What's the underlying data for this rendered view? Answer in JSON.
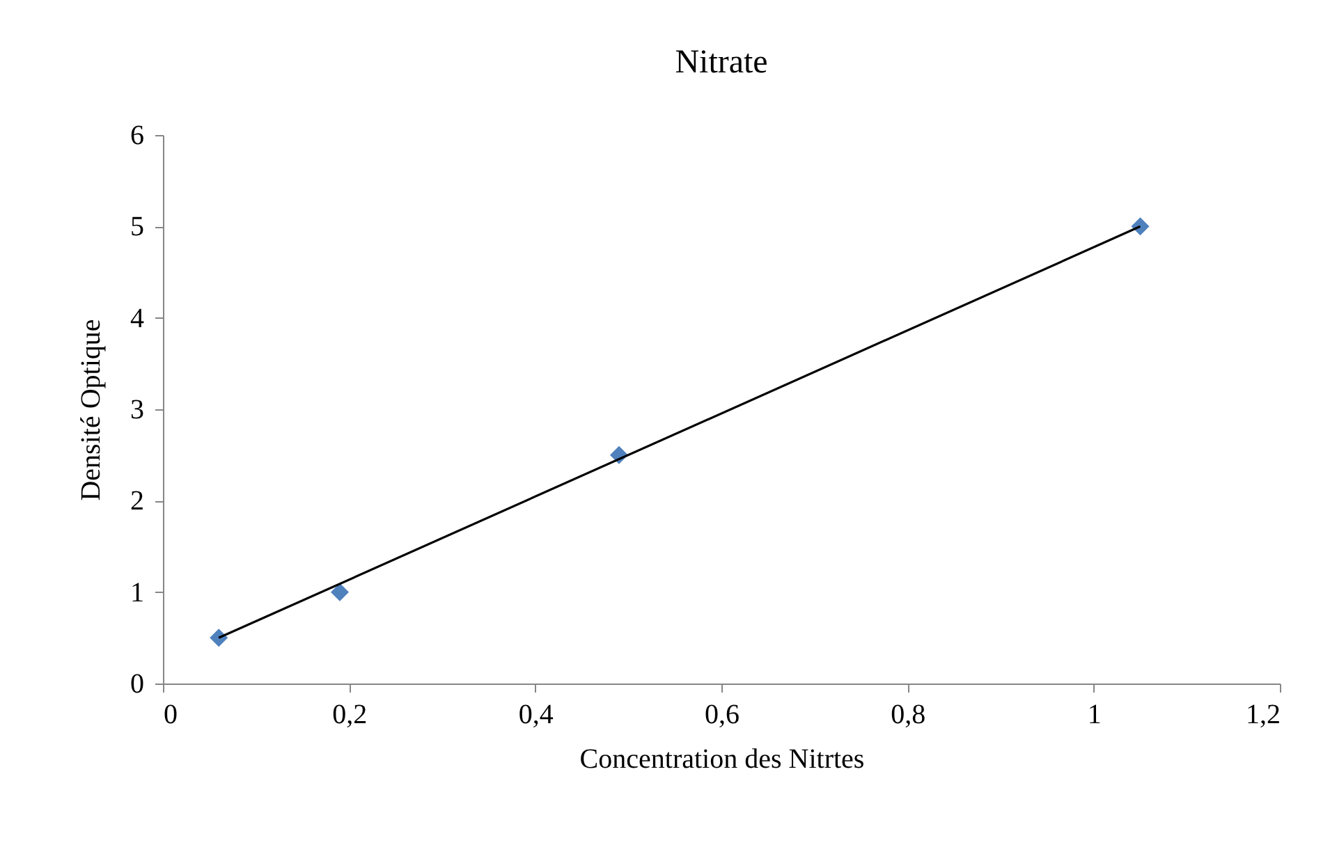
{
  "chart_data": {
    "type": "scatter",
    "title": "Nitrate",
    "xlabel": "Concentration des Nitrtes",
    "ylabel": "Densité Optique",
    "x": [
      0.06,
      0.19,
      0.49,
      1.05
    ],
    "series": [
      {
        "color": "#4f81bd",
        "marker": "diamond",
        "values": [
          0.5,
          1,
          2.5,
          5
        ]
      },
      {
        "type": "line",
        "color": "#000000",
        "marker": "none",
        "x": [
          0.06,
          1.05
        ],
        "values": [
          0.5,
          5
        ]
      }
    ],
    "xlim": [
      0,
      1.2
    ],
    "xticks": [
      0,
      {
        "value": 0.2,
        "label": "0,2"
      },
      {
        "value": 0.4,
        "label": "0,4"
      },
      {
        "value": 0.6,
        "label": "0,6"
      },
      {
        "value": 0.8,
        "label": "0,8"
      },
      1,
      {
        "value": 1.2,
        "label": "1,2"
      }
    ],
    "ylim": [
      0,
      6
    ],
    "yticks": [
      0,
      1,
      2,
      3,
      4,
      5,
      6
    ]
  }
}
